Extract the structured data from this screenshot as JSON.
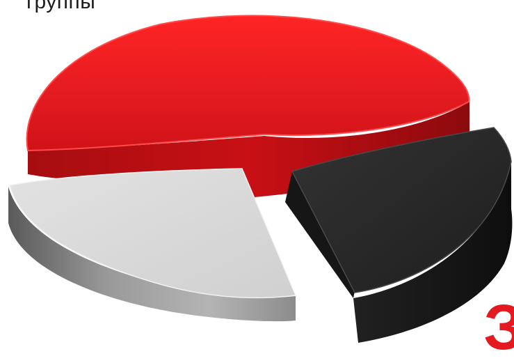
{
  "chart_data": {
    "type": "pie",
    "title": "группы",
    "style": "3d-exploded",
    "slices": [
      {
        "name": "",
        "value": 50,
        "color": "#e31b20"
      },
      {
        "name": "",
        "value": 25,
        "color": "#2a2a2a"
      },
      {
        "name": "",
        "value": 25,
        "color": "#dcdcdc"
      }
    ]
  },
  "branding": {
    "corner_mark": "З",
    "accent_color": "#e31b20"
  }
}
